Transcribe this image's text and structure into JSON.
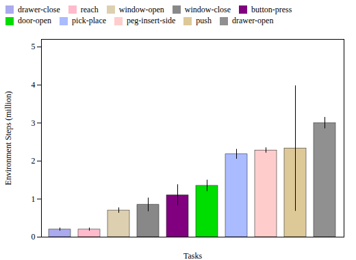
{
  "chart_data": {
    "type": "bar",
    "categories": [
      "drawer-close",
      "reach",
      "window-open",
      "window-close",
      "button-press",
      "door-open",
      "pick-place",
      "peg-insert-side",
      "push",
      "drawer-open"
    ],
    "values": [
      0.2,
      0.2,
      0.7,
      0.85,
      1.1,
      1.35,
      2.18,
      2.28,
      2.33,
      3.0
    ],
    "errors": [
      0.04,
      0.04,
      0.07,
      0.18,
      0.28,
      0.15,
      0.13,
      0.07,
      1.65,
      0.15
    ],
    "colors": [
      "#aaaaee",
      "#ffbbcc",
      "#ddd0b0",
      "#888888",
      "#800080",
      "#00dd00",
      "#aabbff",
      "#ffcccc",
      "#ddc898",
      "#909090"
    ],
    "xlabel": "Tasks",
    "ylabel": "Environment Steps (million)",
    "ylim": [
      0,
      5.2
    ],
    "yticks": [
      0,
      1,
      2,
      3,
      4,
      5
    ],
    "legend": "upper left",
    "tick_labels": "y"
  }
}
